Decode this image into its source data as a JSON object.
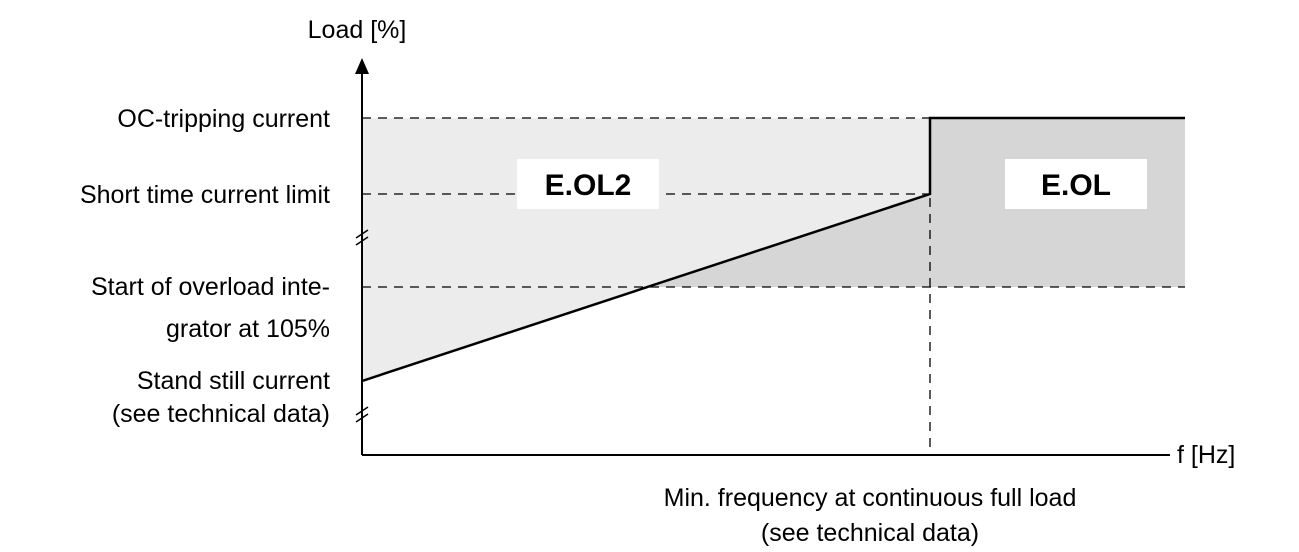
{
  "axes": {
    "y_label": "Load [%]",
    "x_label": "f [Hz]"
  },
  "levels": {
    "oc_tripping": "OC-tripping current",
    "short_time": "Short time current limit",
    "overload_start_line1": "Start of overload inte-",
    "overload_start_line2": "grator at 105%",
    "standstill_line1": "Stand still current",
    "standstill_line2": "(see technical data)"
  },
  "frequency_marker": {
    "line1": "Min. frequency at continuous full load",
    "line2": "(see technical data)"
  },
  "zones": {
    "left": "E.OL2",
    "right": "E.OL"
  },
  "colors": {
    "light_region": "#ececec",
    "dark_region": "#d6d6d6",
    "line": "#000000",
    "label_box": "#ffffff"
  }
}
